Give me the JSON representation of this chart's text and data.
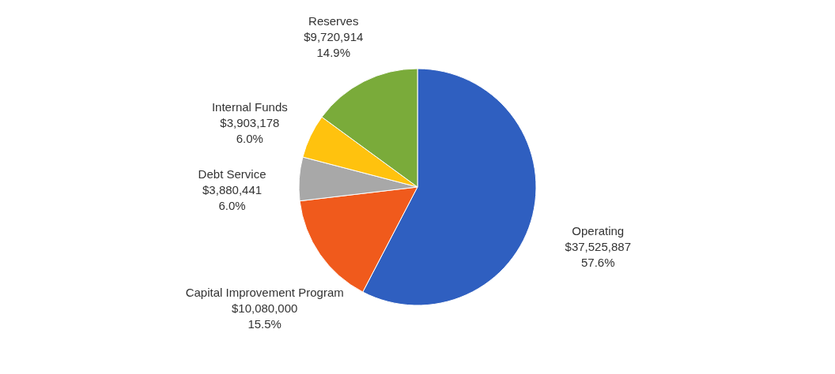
{
  "chart_data": {
    "type": "pie",
    "categories": [
      "Operating",
      "Capital Improvement Program",
      "Debt Service",
      "Internal Funds",
      "Reserves"
    ],
    "values": [
      37525887,
      10080000,
      3880441,
      3903178,
      9720914
    ],
    "value_labels": [
      "$37,525,887\n57.6%",
      "$10,080,000\n15.5%",
      "$3,880,441\n6.0%",
      "$3,903,178\n6.0%",
      "$9,720,914\n14.9%"
    ],
    "colors": [
      "#2f5fc0",
      "#f05a1c",
      "#a8a8a8",
      "#ffc20e",
      "#7aab3a"
    ]
  }
}
